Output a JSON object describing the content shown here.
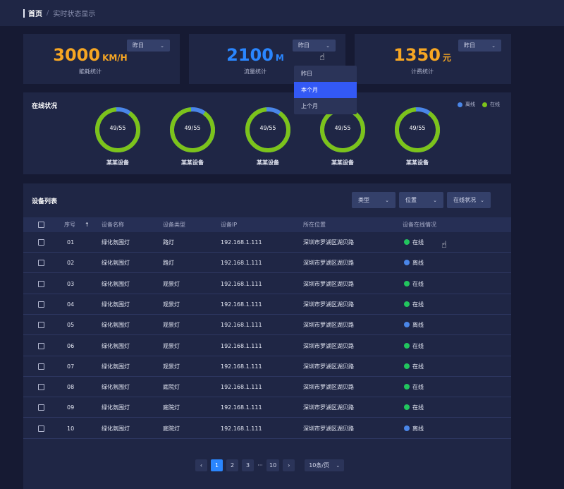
{
  "breadcrumb": {
    "home": "首页",
    "separator": "/",
    "current": "实时状态显示"
  },
  "stats": [
    {
      "value": "3000",
      "unit": "KM/H",
      "label": "能耗统计",
      "period": "昨日",
      "color": "#f6a623"
    },
    {
      "value": "2100",
      "unit": "M",
      "label": "流量统计",
      "period": "昨日",
      "color": "#2a86ff"
    },
    {
      "value": "1350",
      "unit": "元",
      "label": "计费统计",
      "period": "昨日",
      "color": "#f6a623"
    }
  ],
  "period_menu": {
    "options": [
      "昨日",
      "本个月",
      "上个月"
    ],
    "highlighted": "本个月"
  },
  "online": {
    "title": "在线状况",
    "legend": {
      "offline": "离线",
      "online": "在线"
    },
    "colors": {
      "offline": "#4a86e8",
      "online": "#7cc31b"
    },
    "devices": [
      {
        "count": "49/55",
        "name": "某某设备",
        "online_fraction": 0.89
      },
      {
        "count": "49/55",
        "name": "某某设备",
        "online_fraction": 0.89
      },
      {
        "count": "49/55",
        "name": "某某设备",
        "online_fraction": 0.89
      },
      {
        "count": "49/55",
        "name": "某某设备",
        "online_fraction": 0.89
      },
      {
        "count": "49/55",
        "name": "某某设备",
        "online_fraction": 0.89
      }
    ]
  },
  "device_list": {
    "title": "设备列表",
    "filters": {
      "type": "类型",
      "location": "位置",
      "status": "在线状况"
    },
    "columns": {
      "index": "序号",
      "sort_icon": "↑",
      "name": "设备名称",
      "type": "设备类型",
      "ip": "设备IP",
      "location": "所在位置",
      "status": "设备在线情况"
    },
    "rows": [
      {
        "index": "01",
        "name": "绿化氛围灯",
        "type": "路灯",
        "ip": "192.168.1.111",
        "location": "深圳市罗湖区湖贝路",
        "status": "在线"
      },
      {
        "index": "02",
        "name": "绿化氛围灯",
        "type": "路灯",
        "ip": "192.168.1.111",
        "location": "深圳市罗湖区湖贝路",
        "status": "离线"
      },
      {
        "index": "03",
        "name": "绿化氛围灯",
        "type": "观景灯",
        "ip": "192.168.1.111",
        "location": "深圳市罗湖区湖贝路",
        "status": "在线"
      },
      {
        "index": "04",
        "name": "绿化氛围灯",
        "type": "观景灯",
        "ip": "192.168.1.111",
        "location": "深圳市罗湖区湖贝路",
        "status": "在线"
      },
      {
        "index": "05",
        "name": "绿化氛围灯",
        "type": "观景灯",
        "ip": "192.168.1.111",
        "location": "深圳市罗湖区湖贝路",
        "status": "离线"
      },
      {
        "index": "06",
        "name": "绿化氛围灯",
        "type": "观景灯",
        "ip": "192.168.1.111",
        "location": "深圳市罗湖区湖贝路",
        "status": "在线"
      },
      {
        "index": "07",
        "name": "绿化氛围灯",
        "type": "观景灯",
        "ip": "192.168.1.111",
        "location": "深圳市罗湖区湖贝路",
        "status": "在线"
      },
      {
        "index": "08",
        "name": "绿化氛围灯",
        "type": "庭院灯",
        "ip": "192.168.1.111",
        "location": "深圳市罗湖区湖贝路",
        "status": "在线"
      },
      {
        "index": "09",
        "name": "绿化氛围灯",
        "type": "庭院灯",
        "ip": "192.168.1.111",
        "location": "深圳市罗湖区湖贝路",
        "status": "在线"
      },
      {
        "index": "10",
        "name": "绿化氛围灯",
        "type": "庭院灯",
        "ip": "192.168.1.111",
        "location": "深圳市罗湖区湖贝路",
        "status": "离线"
      }
    ],
    "status_colors": {
      "在线": "#22c55e",
      "离线": "#4a86e8"
    }
  },
  "pagination": {
    "prev_icon": "‹",
    "next_icon": "›",
    "pages": [
      "1",
      "2",
      "3"
    ],
    "ellipsis": "···",
    "last": "10",
    "current": "1",
    "page_size": "10条/页"
  },
  "icons": {
    "chevron": "chevron-down-icon",
    "sort": "sort-up-icon",
    "cursor": "hand-pointer-icon"
  }
}
